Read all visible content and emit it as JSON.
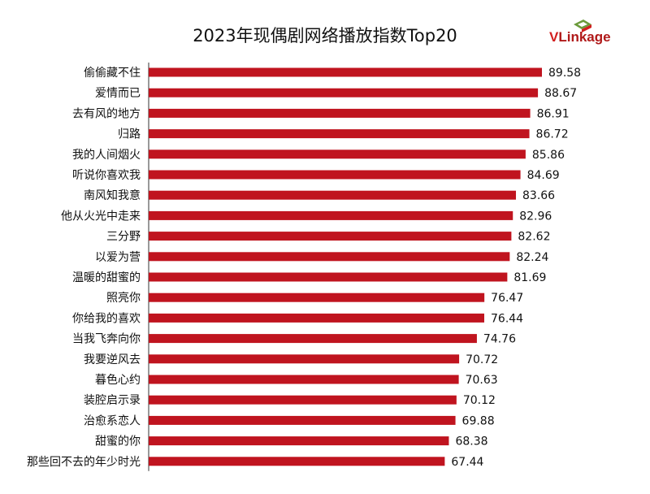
{
  "logo": {
    "text_v": "V",
    "text_rest": "Linkage",
    "colors": {
      "red": "#d21f1f",
      "green": "#6a9a3a"
    }
  },
  "chart_data": {
    "type": "bar",
    "orientation": "horizontal",
    "title": "2023年现偶剧网络播放指数Top20",
    "bar_color": "#c0141f",
    "categories": [
      "偷偷藏不住",
      "爱情而已",
      "去有风的地方",
      "归路",
      "我的人间烟火",
      "听说你喜欢我",
      "南风知我意",
      "他从火光中走来",
      "三分野",
      "以爱为营",
      "温暖的甜蜜的",
      "照亮你",
      "你给我的喜欢",
      "当我飞奔向你",
      "我要逆风去",
      "暮色心约",
      "装腔启示录",
      "治愈系恋人",
      "甜蜜的你",
      "那些回不去的年少时光"
    ],
    "values": [
      89.58,
      88.67,
      86.91,
      86.72,
      85.86,
      84.69,
      83.66,
      82.96,
      82.62,
      82.24,
      81.69,
      76.47,
      76.44,
      74.76,
      70.72,
      70.63,
      70.12,
      69.88,
      68.38,
      67.44
    ],
    "value_labels": [
      "89.58",
      "88.67",
      "86.91",
      "86.72",
      "85.86",
      "84.69",
      "83.66",
      "82.96",
      "82.62",
      "82.24",
      "81.69",
      "76.47",
      "76.44",
      "74.76",
      "70.72",
      "70.63",
      "70.12",
      "69.88",
      "68.38",
      "67.44"
    ],
    "xlim": [
      0,
      89.58
    ],
    "xaxis_visible": false,
    "grid": false,
    "legend": false
  }
}
